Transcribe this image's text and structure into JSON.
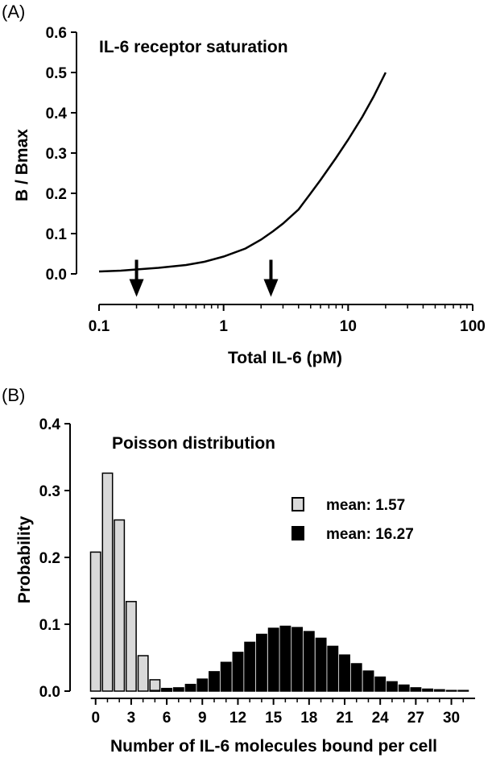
{
  "chart_data": [
    {
      "panel_label": "(A)",
      "type": "line",
      "title": "IL-6 receptor saturation",
      "xlabel": "Total IL-6 (pM)",
      "ylabel": "B / Bmax",
      "x_scale": "log",
      "xlim": [
        0.1,
        100
      ],
      "ylim": [
        0,
        0.6
      ],
      "x_ticks": [
        0.1,
        1,
        10,
        100
      ],
      "x_tick_labels": [
        "0.1",
        "1",
        "10",
        "100"
      ],
      "y_ticks": [
        0,
        0.1,
        0.2,
        0.3,
        0.4,
        0.5,
        0.6
      ],
      "y_tick_labels": [
        "0.0",
        "0.1",
        "0.2",
        "0.3",
        "0.4",
        "0.5",
        "0.6"
      ],
      "grid": false,
      "series": [
        {
          "x": [
            0.1,
            0.15,
            0.2,
            0.3,
            0.5,
            0.7,
            1,
            1.5,
            2,
            2.5,
            3,
            4,
            5,
            6,
            8,
            10,
            13,
            16,
            20
          ],
          "y": [
            0.006,
            0.008,
            0.011,
            0.015,
            0.022,
            0.03,
            0.043,
            0.063,
            0.085,
            0.106,
            0.125,
            0.16,
            0.2,
            0.233,
            0.288,
            0.333,
            0.39,
            0.44,
            0.5
          ]
        }
      ],
      "annotations": [
        {
          "kind": "down-arrow",
          "x": 0.2
        },
        {
          "kind": "down-arrow",
          "x": 2.4
        }
      ]
    },
    {
      "panel_label": "(B)",
      "type": "bar",
      "title": "Poisson distribution",
      "xlabel": "Number of IL-6 molecules bound per cell",
      "ylabel": "Probability",
      "xlim": [
        -1,
        32
      ],
      "ylim": [
        0,
        0.4
      ],
      "x_ticks": [
        0,
        3,
        6,
        9,
        12,
        15,
        18,
        21,
        24,
        27,
        30
      ],
      "x_tick_labels": [
        "0",
        "3",
        "6",
        "9",
        "12",
        "15",
        "18",
        "21",
        "24",
        "27",
        "30"
      ],
      "y_ticks": [
        0,
        0.1,
        0.2,
        0.3,
        0.4
      ],
      "y_tick_labels": [
        "0.0",
        "0.1",
        "0.2",
        "0.3",
        "0.4"
      ],
      "grid": false,
      "legend_position": "right",
      "series": [
        {
          "name": "mean: 1.57",
          "color": "#d9d9d9",
          "x": [
            0,
            1,
            2,
            3,
            4,
            5,
            6
          ],
          "values": [
            0.208,
            0.326,
            0.256,
            0.134,
            0.053,
            0.017,
            0.004
          ]
        },
        {
          "name": "mean: 16.27",
          "color": "#000000",
          "x": [
            5,
            6,
            7,
            8,
            9,
            10,
            11,
            12,
            13,
            14,
            15,
            16,
            17,
            18,
            19,
            20,
            21,
            22,
            23,
            24,
            25,
            26,
            27,
            28,
            29,
            30,
            31
          ],
          "values": [
            0.001,
            0.003,
            0.005,
            0.01,
            0.018,
            0.029,
            0.043,
            0.058,
            0.073,
            0.085,
            0.094,
            0.097,
            0.095,
            0.089,
            0.079,
            0.067,
            0.054,
            0.041,
            0.03,
            0.021,
            0.014,
            0.009,
            0.005,
            0.003,
            0.002,
            0.001,
            0.001
          ]
        }
      ]
    }
  ]
}
